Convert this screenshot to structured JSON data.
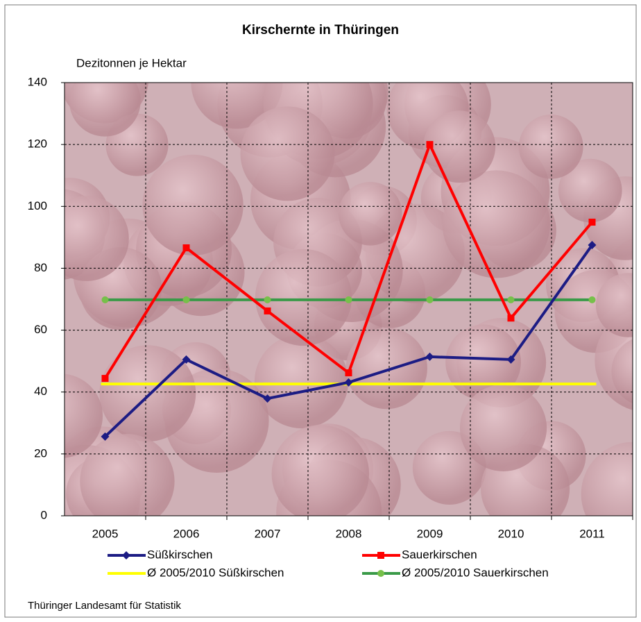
{
  "chart_data": {
    "type": "line",
    "title": "Kirschernte in Thüringen",
    "y_label": "Dezitonnen je Hektar",
    "source": "Thüringer Landesamt für Statistik",
    "categories": [
      "2005",
      "2006",
      "2007",
      "2008",
      "2009",
      "2010",
      "2011"
    ],
    "series": [
      {
        "name": "Süßkirschen",
        "color": "#1c1c84",
        "marker": "diamond",
        "values": [
          25.6,
          50.5,
          37.9,
          43.1,
          51.4,
          50.5,
          87.5
        ]
      },
      {
        "name": "Sauerkirschen",
        "color": "#ff0000",
        "marker": "square",
        "values": [
          44.4,
          86.6,
          66.2,
          46.2,
          120,
          63.9,
          94.9
        ]
      },
      {
        "name": "Ø 2005/2010 Süßkirschen",
        "color": "#ffff00",
        "marker": "dash",
        "values": [
          42.6,
          42.6,
          42.6,
          42.6,
          42.6,
          42.6,
          42.6
        ]
      },
      {
        "name": "Ø 2005/2010 Sauerkirschen",
        "color": "#3a9a48",
        "marker": "circle",
        "values": [
          69.8,
          69.8,
          69.8,
          69.8,
          69.8,
          69.8,
          69.8
        ]
      }
    ],
    "ylim": [
      0,
      140
    ],
    "yticks": [
      0,
      20,
      40,
      60,
      80,
      100,
      120,
      140
    ],
    "grid": true,
    "legend": "bottom"
  }
}
